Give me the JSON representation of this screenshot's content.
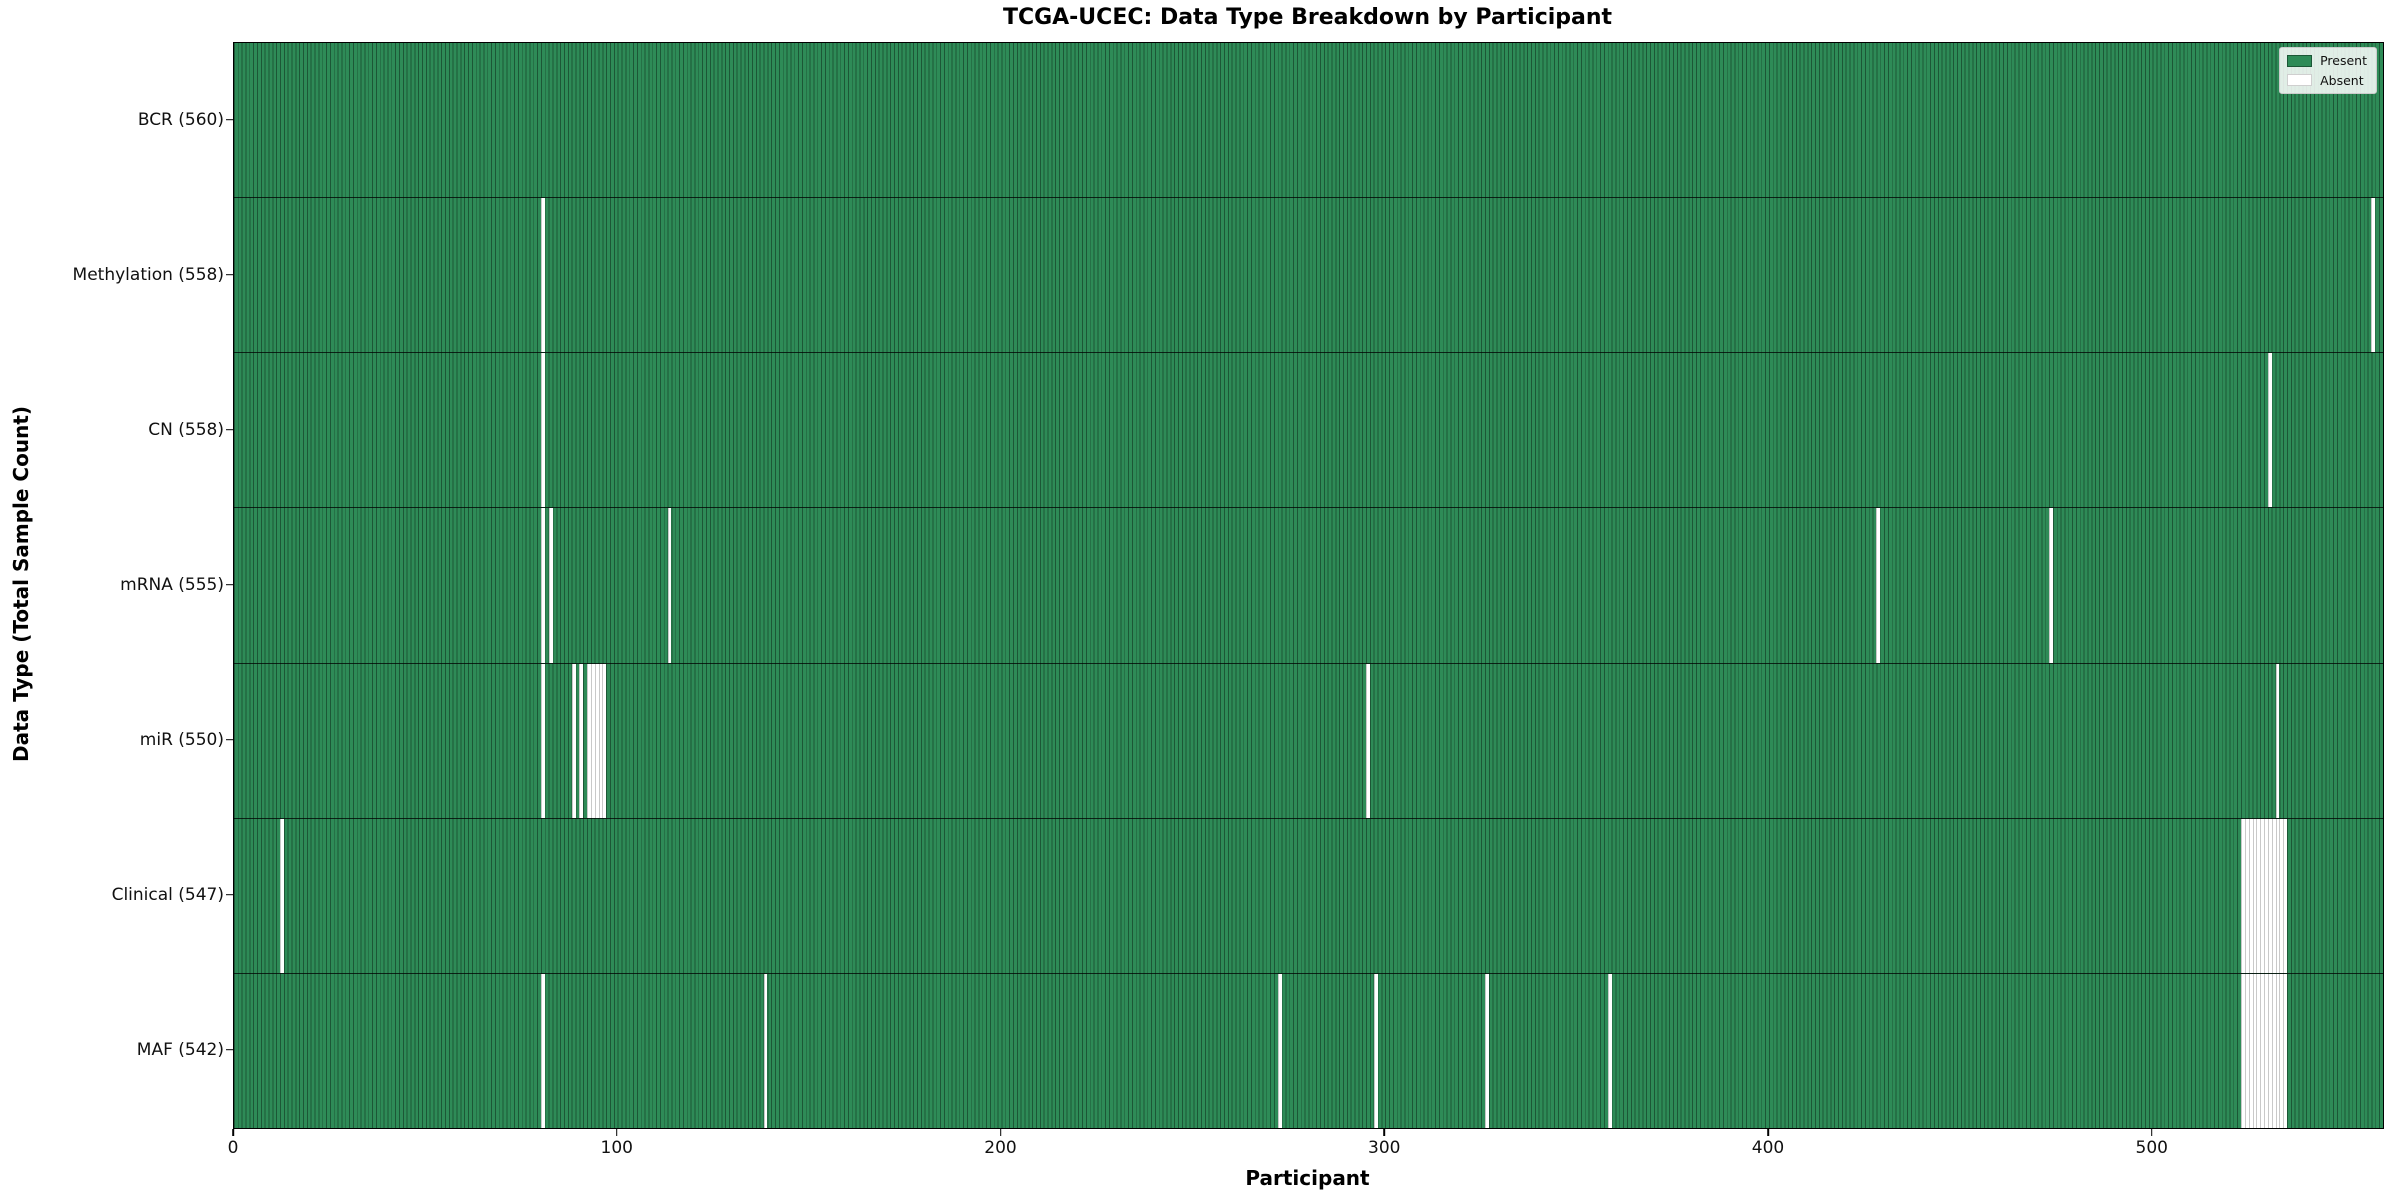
{
  "chart_data": {
    "type": "heatmap",
    "title": "TCGA-UCEC: Data Type Breakdown by Participant",
    "xlabel": "Participant",
    "ylabel": "Data Type (Total Sample Count)",
    "xlim": [
      0,
      560
    ],
    "x_ticks": [
      0,
      100,
      200,
      300,
      400,
      500
    ],
    "grid": false,
    "legend": {
      "position": "upper right",
      "entries": [
        {
          "label": "Present",
          "color": "#2e8b57"
        },
        {
          "label": "Absent",
          "color": "#ffffff"
        }
      ]
    },
    "colors": {
      "present_fill": "#2e8b57",
      "present_edge": "#1c5736",
      "absent_fill": "#ffffff",
      "absent_edge": "#c9c9c9"
    },
    "rows": [
      {
        "label": "BCR (560)",
        "data_type": "BCR",
        "present_count": 560,
        "absent_participants": []
      },
      {
        "label": "Methylation (558)",
        "data_type": "Methylation",
        "present_count": 558,
        "absent_participants": [
          80,
          557
        ]
      },
      {
        "label": "CN (558)",
        "data_type": "CN",
        "present_count": 558,
        "absent_participants": [
          80,
          530
        ]
      },
      {
        "label": "mRNA (555)",
        "data_type": "mRNA",
        "present_count": 555,
        "absent_participants": [
          80,
          82,
          113,
          428,
          473
        ]
      },
      {
        "label": "miR (550)",
        "data_type": "miR",
        "present_count": 550,
        "absent_participants": [
          80,
          88,
          90,
          92,
          93,
          94,
          95,
          96,
          295,
          532
        ]
      },
      {
        "label": "Clinical (547)",
        "data_type": "Clinical",
        "present_count": 547,
        "absent_participants": [
          12,
          523,
          524,
          525,
          526,
          527,
          528,
          529,
          530,
          531,
          532,
          533,
          534
        ]
      },
      {
        "label": "MAF (542)",
        "data_type": "MAF",
        "present_count": 542,
        "absent_participants": [
          80,
          138,
          272,
          297,
          326,
          358,
          523,
          524,
          525,
          526,
          527,
          528,
          529,
          530,
          531,
          532,
          533,
          534
        ]
      }
    ]
  }
}
